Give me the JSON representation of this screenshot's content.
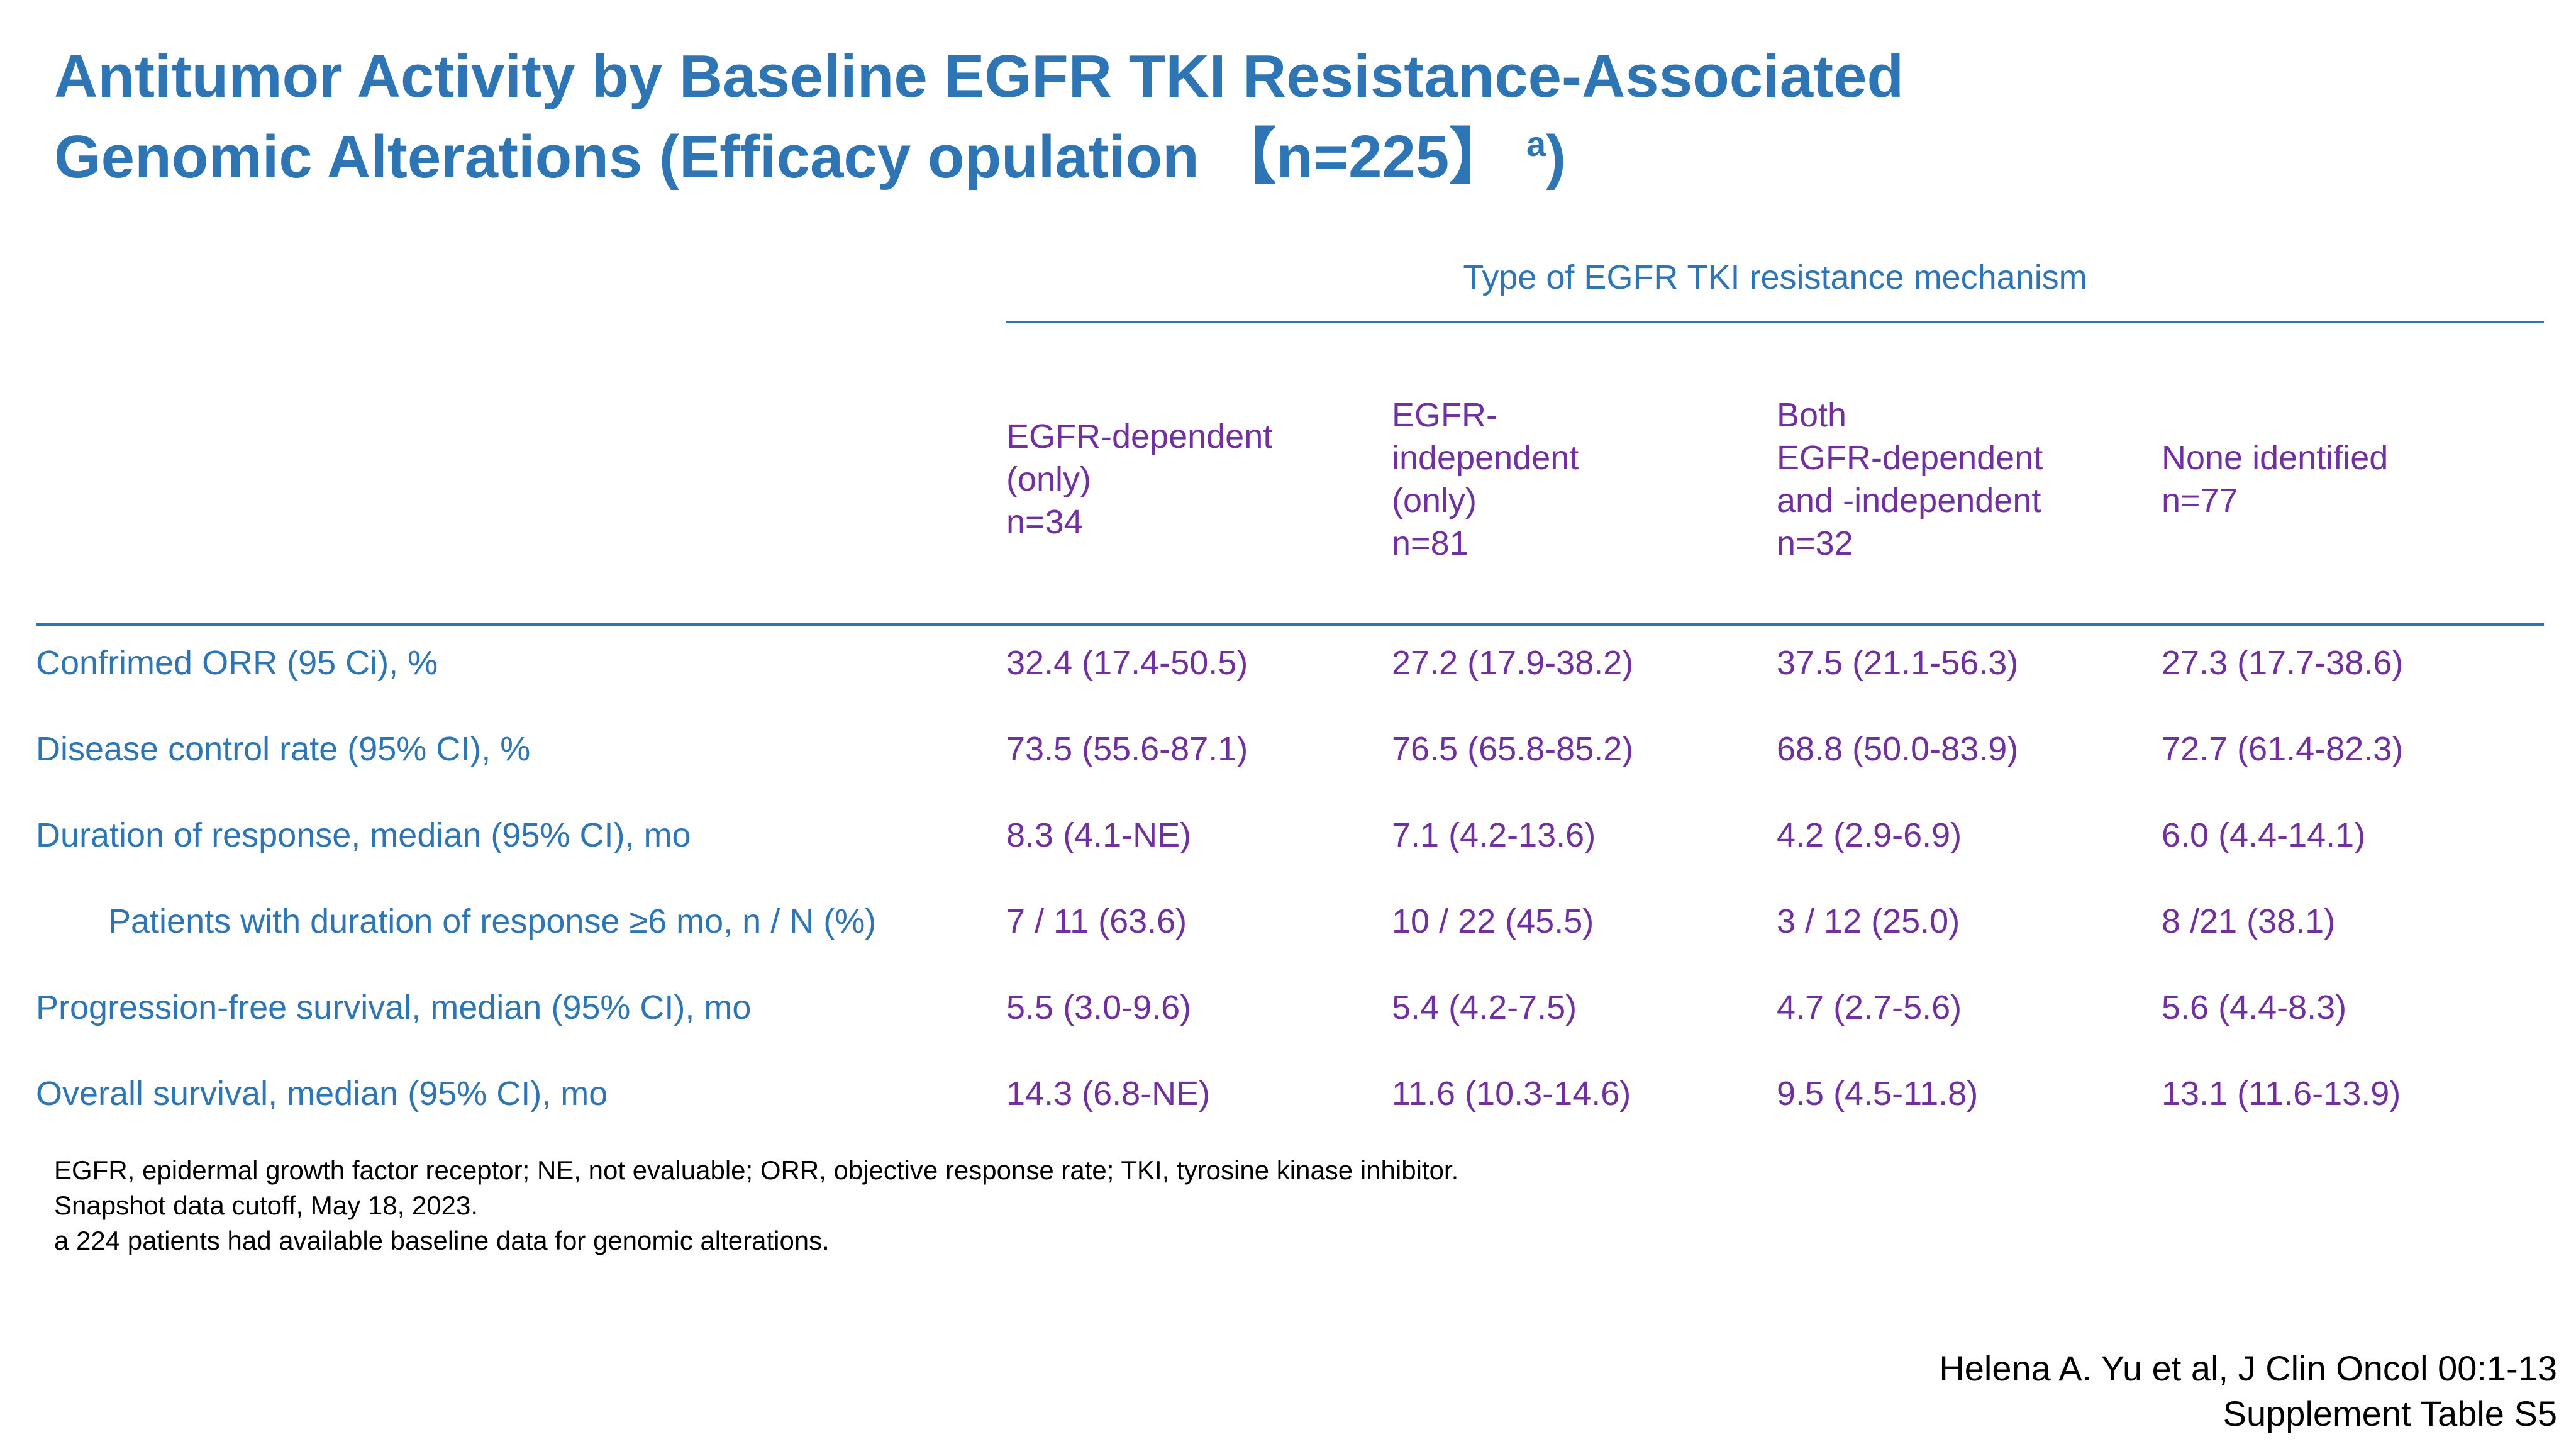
{
  "title": {
    "line1": "Antitumor Activity by Baseline EGFR TKI Resistance-Associated",
    "line2": "Genomic Alterations (Efficacy opulation 【n=225】",
    "superscript": "a",
    "closing": ")"
  },
  "table": {
    "group_header": "Type of EGFR TKI resistance mechanism",
    "columns": [
      "EGFR-dependent\n(only)\nn=34",
      "EGFR-\nindependent\n(only)\nn=81",
      "Both\nEGFR-dependent\nand -independent\nn=32",
      "None identified\nn=77"
    ],
    "rows": [
      {
        "label": "Confrimed ORR (95 Ci), %",
        "values": [
          "32.4 (17.4-50.5)",
          "27.2 (17.9-38.2)",
          "37.5 (21.1-56.3)",
          "27.3 (17.7-38.6)"
        ]
      },
      {
        "label": "Disease control rate (95% CI), %",
        "values": [
          "73.5 (55.6-87.1)",
          "76.5 (65.8-85.2)",
          "68.8 (50.0-83.9)",
          "72.7 (61.4-82.3)"
        ]
      },
      {
        "label": "Duration of response, median (95% CI), mo",
        "values": [
          "8.3 (4.1-NE)",
          "7.1 (4.2-13.6)",
          "4.2 (2.9-6.9)",
          "6.0 (4.4-14.1)"
        ]
      },
      {
        "label": "Patients with duration of response ≥6 mo, n / N (%)",
        "values": [
          "7 / 11 (63.6)",
          "10 / 22 (45.5)",
          "3 / 12 (25.0)",
          "8 /21 (38.1)"
        ]
      },
      {
        "label": "Progression-free survival, median (95% CI), mo",
        "values": [
          "5.5 (3.0-9.6)",
          "5.4 (4.2-7.5)",
          "4.7 (2.7-5.6)",
          "5.6 (4.4-8.3)"
        ]
      },
      {
        "label": "Overall survival, median (95% CI), mo",
        "values": [
          "14.3 (6.8-NE)",
          "11.6 (10.3-14.6)",
          "9.5 (4.5-11.8)",
          "13.1 (11.6-13.9)"
        ]
      }
    ]
  },
  "footnotes": [
    "EGFR, epidermal growth factor receptor; NE, not evaluable; ORR, objective response rate; TKI, tyrosine kinase inhibitor.",
    "Snapshot data cutoff, May 18, 2023.",
    "a 224 patients had available baseline data for genomic alterations."
  ],
  "citation": {
    "line1": "Helena A. Yu et al, J Clin Oncol 00:1-13",
    "line2": "Supplement Table S5"
  },
  "colors": {
    "title_blue": "#2e75b6",
    "value_purple": "#7030a0"
  }
}
